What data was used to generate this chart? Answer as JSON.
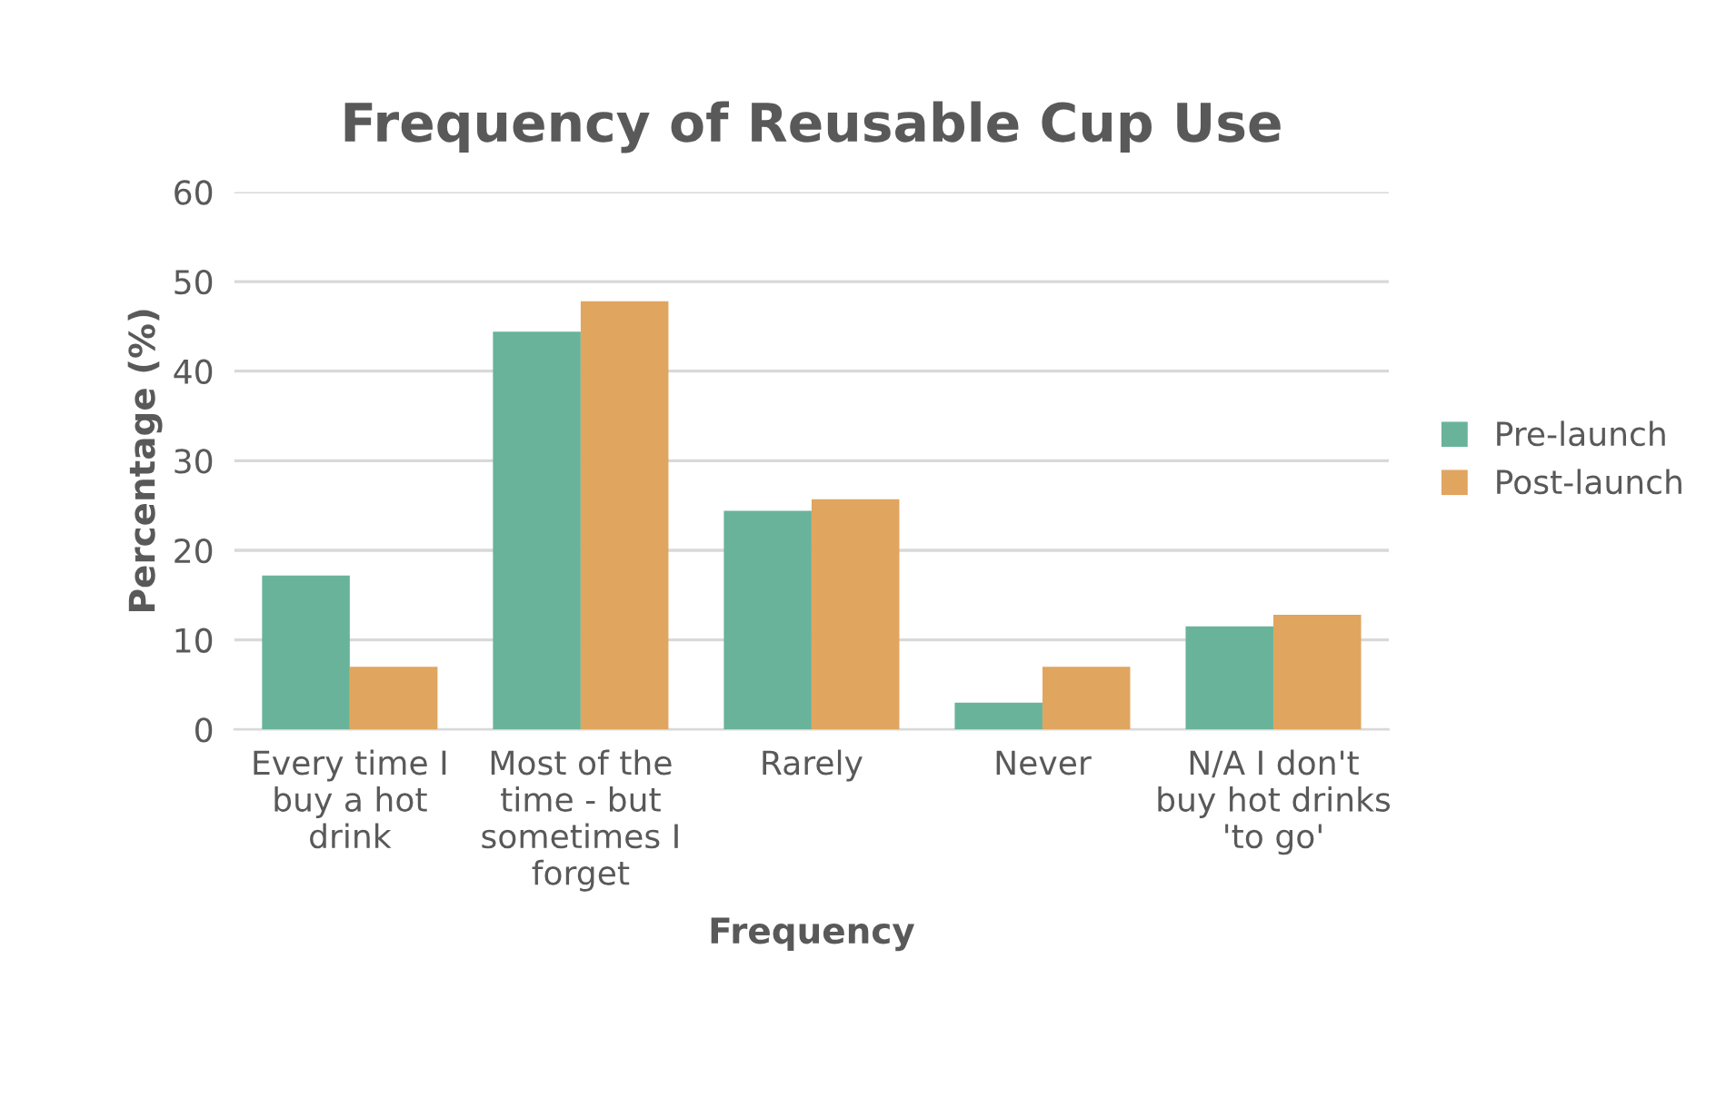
{
  "chart_data": {
    "type": "bar",
    "title": "Frequency of Reusable Cup Use",
    "xlabel": "Frequency",
    "ylabel": "Percentage (%)",
    "categories": [
      "Every time I buy a hot drink",
      "Most of the time - but sometimes I forget",
      "Rarely",
      "Never",
      "N/A I don't buy hot drinks 'to go'"
    ],
    "series": [
      {
        "name": "Pre-launch",
        "color": "#69b39b",
        "values": [
          17.2,
          44.4,
          24.4,
          3.0,
          11.5
        ]
      },
      {
        "name": "Post-launch",
        "color": "#e0a55f",
        "values": [
          7.0,
          47.8,
          25.7,
          7.0,
          12.8
        ]
      }
    ],
    "ylim": [
      0,
      60
    ],
    "yticks": [
      0,
      10,
      20,
      30,
      40,
      50,
      60
    ],
    "grid": "y",
    "legend": "right"
  }
}
